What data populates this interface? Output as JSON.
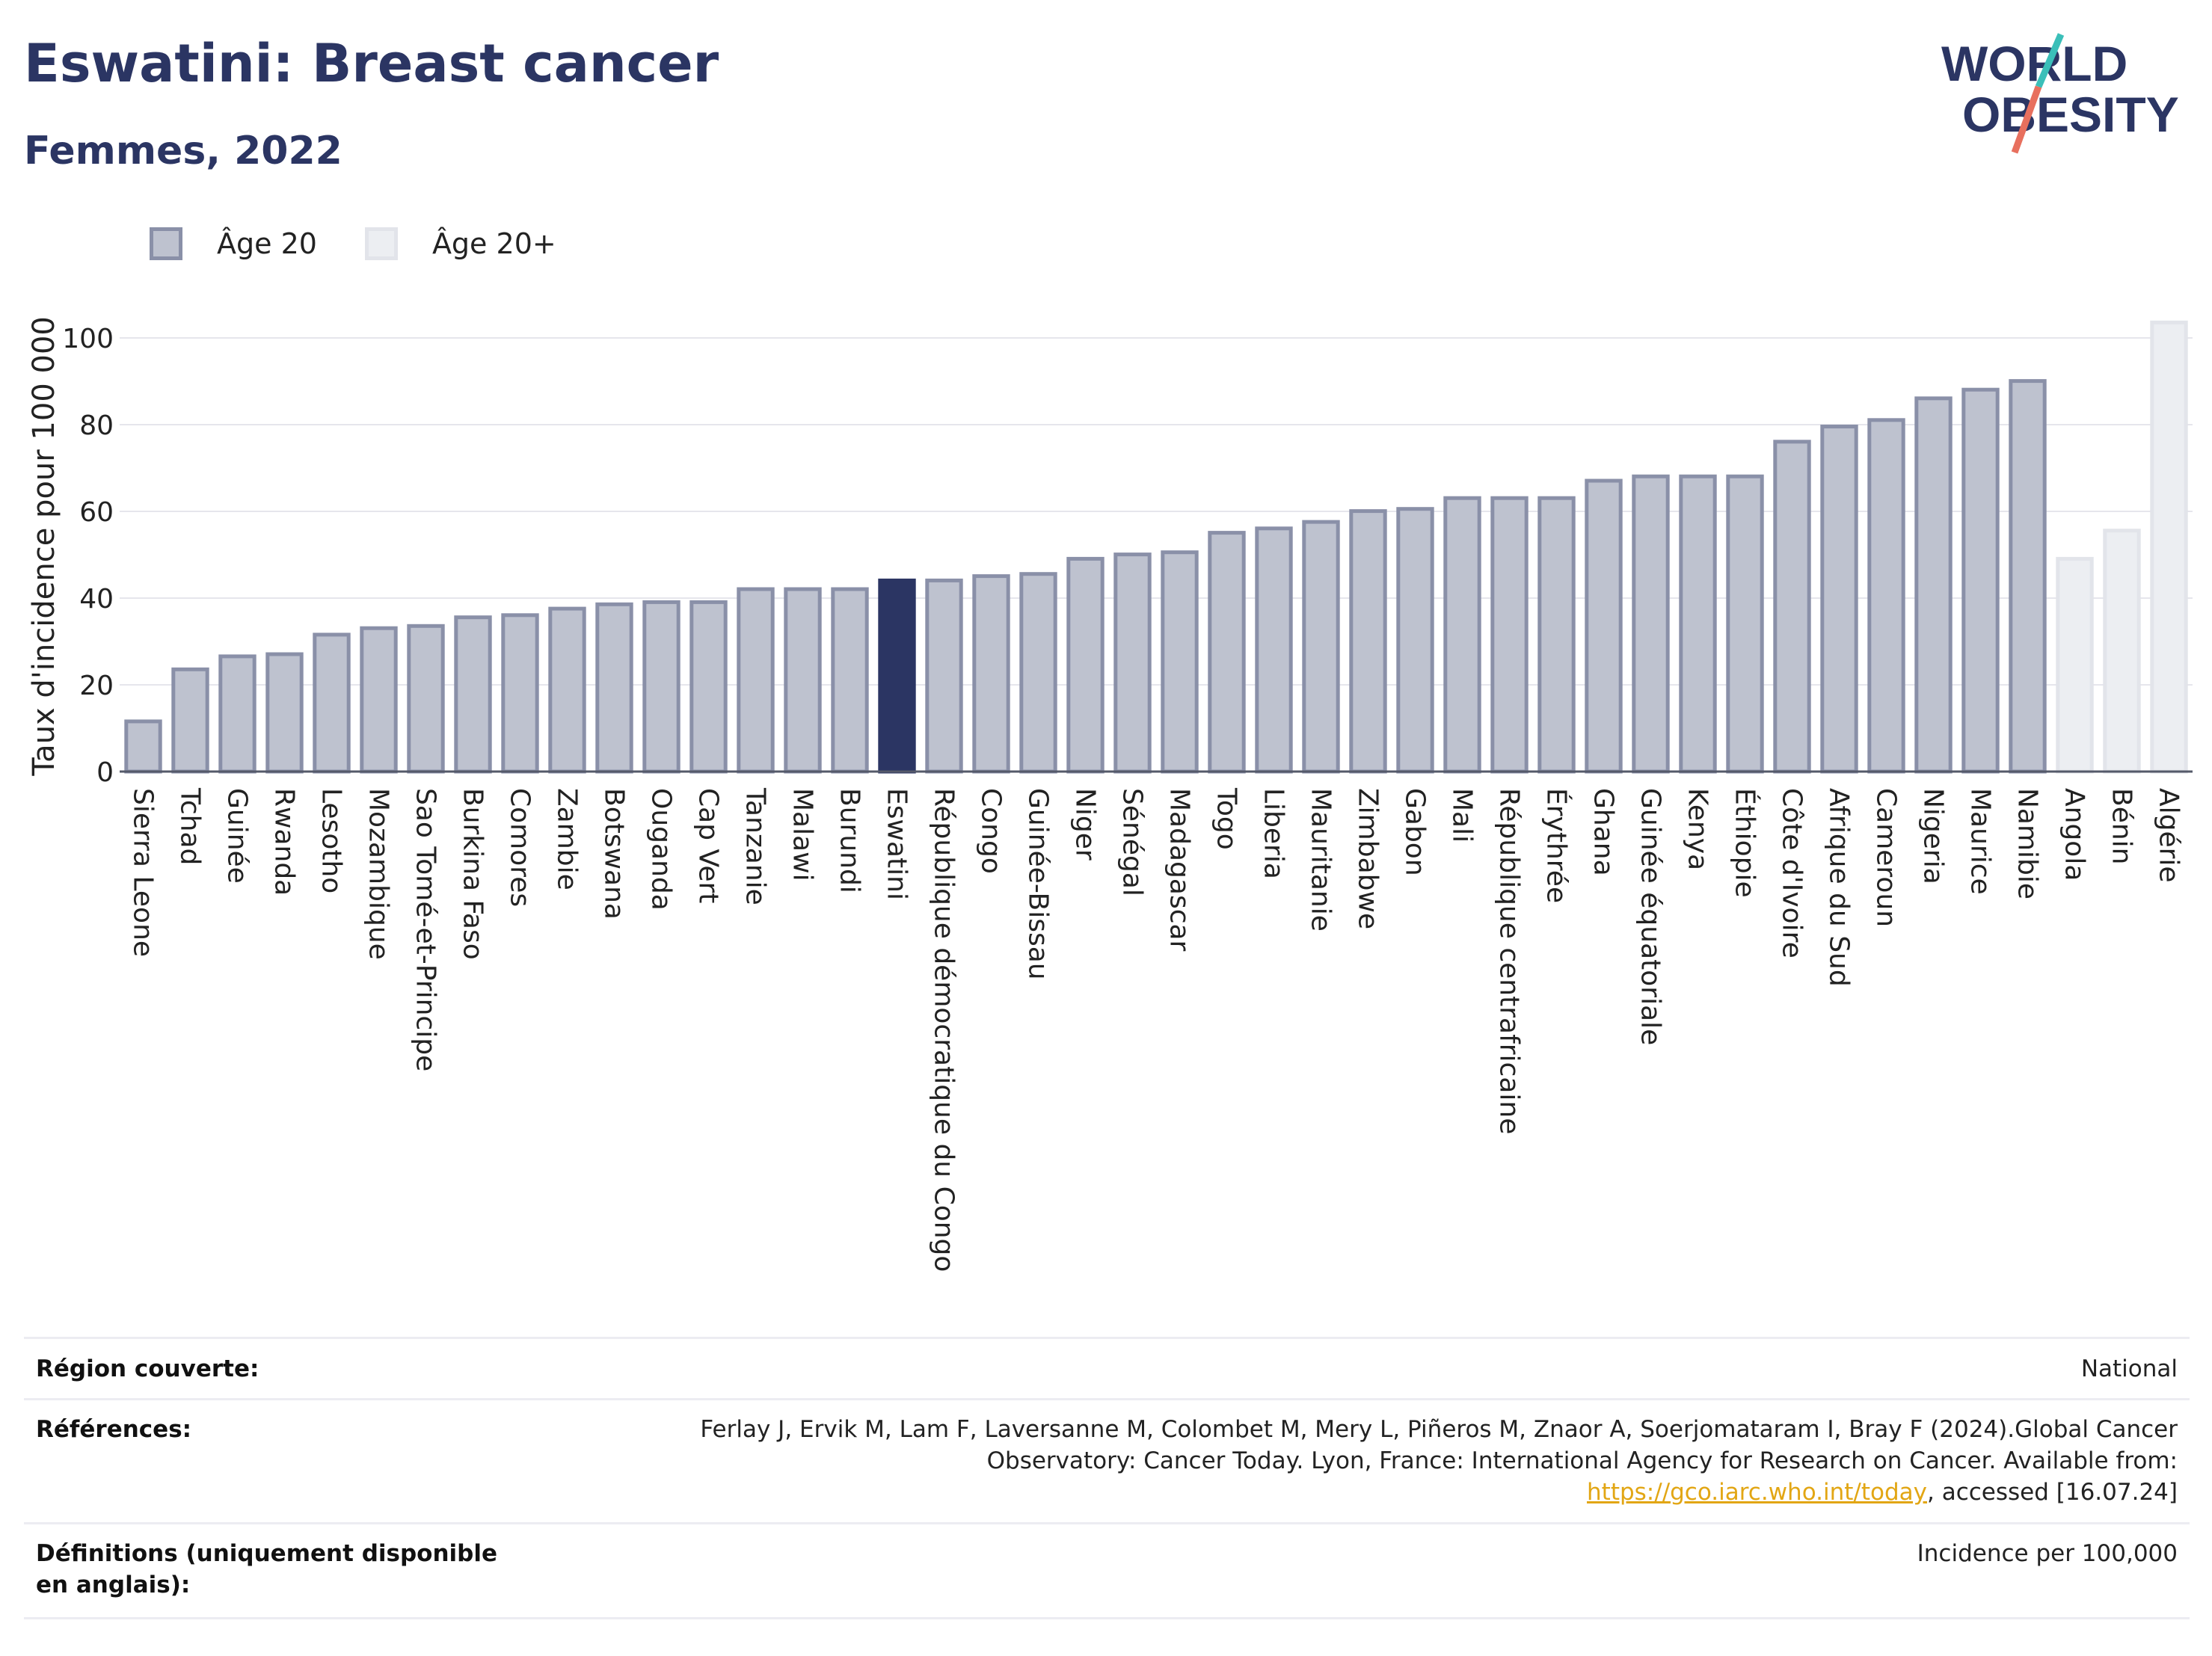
{
  "header": {
    "title": "Eswatini: Breast cancer",
    "subtitle": "Femmes, 2022"
  },
  "logo": {
    "line1": "WORLD",
    "line2": "OBESITY",
    "colors": {
      "navy": "#2b3563",
      "teal": "#3bbfb9",
      "coral": "#e8705e"
    }
  },
  "legend": {
    "items": [
      {
        "label": "Âge 20",
        "color": "#bec2cf",
        "border": "#8a90a8"
      },
      {
        "label": "Âge 20+",
        "color": "#eceef2",
        "border": "#e2e4ea"
      }
    ]
  },
  "chart_data": {
    "type": "bar",
    "ylabel": "Taux d'incidence pour 100 000",
    "ylim": [
      0,
      105
    ],
    "yticks": [
      0,
      20,
      40,
      60,
      80,
      100
    ],
    "grid": true,
    "highlight": "Eswatini",
    "colors": {
      "main_fill": "#bec2cf",
      "main_border": "#8a90a8",
      "light_fill": "#eceef2",
      "light_border": "#e2e4ea",
      "highlight": "#2b3563"
    },
    "categories": [
      "Sierra Leone",
      "Tchad",
      "Guinée",
      "Rwanda",
      "Lesotho",
      "Mozambique",
      "Sao Tomé-et-Principe",
      "Burkina Faso",
      "Comores",
      "Zambie",
      "Botswana",
      "Ouganda",
      "Cap Vert",
      "Tanzanie",
      "Malawi",
      "Burundi",
      "Eswatini",
      "République démocratique du Congo",
      "Congo",
      "Guinée-Bissau",
      "Niger",
      "Sénégal",
      "Madagascar",
      "Togo",
      "Liberia",
      "Mauritanie",
      "Zimbabwe",
      "Gabon",
      "Mali",
      "République centrafricaine",
      "Érythrée",
      "Ghana",
      "Guinée équatoriale",
      "Kenya",
      "Éthiopie",
      "Côte d'Ivoire",
      "Afrique du Sud",
      "Cameroun",
      "Nigeria",
      "Maurice",
      "Namibie",
      "Angola",
      "Bénin",
      "Algérie"
    ],
    "values": [
      12,
      24,
      27,
      27.5,
      32,
      33.5,
      34,
      36,
      36.5,
      38,
      39,
      39.5,
      39.5,
      42.5,
      42.5,
      42.5,
      44.5,
      44.5,
      45.5,
      46,
      49.5,
      50.5,
      51,
      55.5,
      56.5,
      58,
      60.5,
      61,
      63.5,
      63.5,
      63.5,
      67.5,
      68.5,
      68.5,
      68.5,
      76.5,
      80,
      81.5,
      86.5,
      88.5,
      90.5,
      49.5,
      56,
      104
    ],
    "series_group": [
      "20",
      "20",
      "20",
      "20",
      "20",
      "20",
      "20",
      "20",
      "20",
      "20",
      "20",
      "20",
      "20",
      "20",
      "20",
      "20",
      "20",
      "20",
      "20",
      "20",
      "20",
      "20",
      "20",
      "20",
      "20",
      "20",
      "20",
      "20",
      "20",
      "20",
      "20",
      "20",
      "20",
      "20",
      "20",
      "20",
      "20",
      "20",
      "20",
      "20",
      "20",
      "20+",
      "20+",
      "20+"
    ]
  },
  "info_table": [
    {
      "label": "Région couverte:",
      "value": "National"
    },
    {
      "label": "Références:",
      "value_pre": "Ferlay J, Ervik M, Lam F, Laversanne M, Colombet M, Mery L, Piñeros M, Znaor A, Soerjomataram I, Bray F (2024).Global Cancer Observatory: Cancer Today. Lyon, France: International Agency for Research on Cancer. Available from: ",
      "link": "https://gco.iarc.who.int/today",
      "value_post": ", accessed [16.07.24]"
    },
    {
      "label": "Définitions (uniquement disponible en anglais):",
      "value": "Incidence per 100,000"
    }
  ]
}
